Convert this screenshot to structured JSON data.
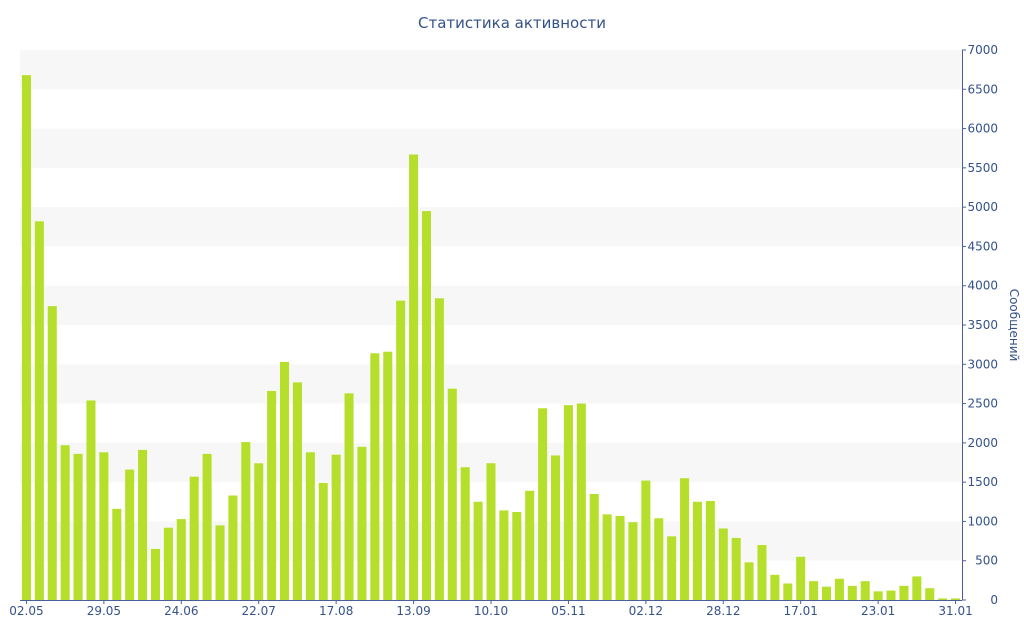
{
  "chart_data": {
    "type": "bar",
    "title": "Статистика активности",
    "ylabel": "Сообщений",
    "xlabel": "",
    "ylim": [
      0,
      7000
    ],
    "yticks": [
      0,
      500,
      1000,
      1500,
      2000,
      2500,
      3000,
      3500,
      4000,
      4500,
      5000,
      5500,
      6000,
      6500,
      7000
    ],
    "y_axis_position": "right",
    "grid": "alternating horizontal bands",
    "xtick_labels": [
      {
        "label": "02.05",
        "index": 0
      },
      {
        "label": "29.05",
        "index": 6
      },
      {
        "label": "24.06",
        "index": 12
      },
      {
        "label": "22.07",
        "index": 18
      },
      {
        "label": "17.08",
        "index": 24
      },
      {
        "label": "13.09",
        "index": 30
      },
      {
        "label": "10.10",
        "index": 36
      },
      {
        "label": "05.11",
        "index": 42
      },
      {
        "label": "02.12",
        "index": 48
      },
      {
        "label": "28.12",
        "index": 54
      },
      {
        "label": "17.01",
        "index": 60
      },
      {
        "label": "23.01",
        "index": 66
      },
      {
        "label": "31.01",
        "index": 72
      }
    ],
    "values": [
      6680,
      4820,
      3740,
      1970,
      1860,
      2540,
      1880,
      1160,
      1660,
      1910,
      650,
      920,
      1030,
      1570,
      1860,
      950,
      1330,
      2010,
      1740,
      2660,
      3030,
      2770,
      1880,
      1490,
      1850,
      2630,
      1950,
      3140,
      3160,
      3810,
      5670,
      4950,
      3840,
      2690,
      1690,
      1250,
      1740,
      1140,
      1120,
      1390,
      2440,
      1840,
      2480,
      2500,
      1350,
      1090,
      1070,
      990,
      1520,
      1040,
      810,
      1550,
      1250,
      1260,
      910,
      790,
      480,
      700,
      320,
      210,
      550,
      240,
      170,
      270,
      180,
      240,
      110,
      120,
      180,
      300,
      150,
      20,
      20
    ],
    "colors": {
      "bar": "#b5df2a",
      "axis": "#4a5f98",
      "text": "#34528a",
      "band": "#f7f7f7"
    }
  }
}
